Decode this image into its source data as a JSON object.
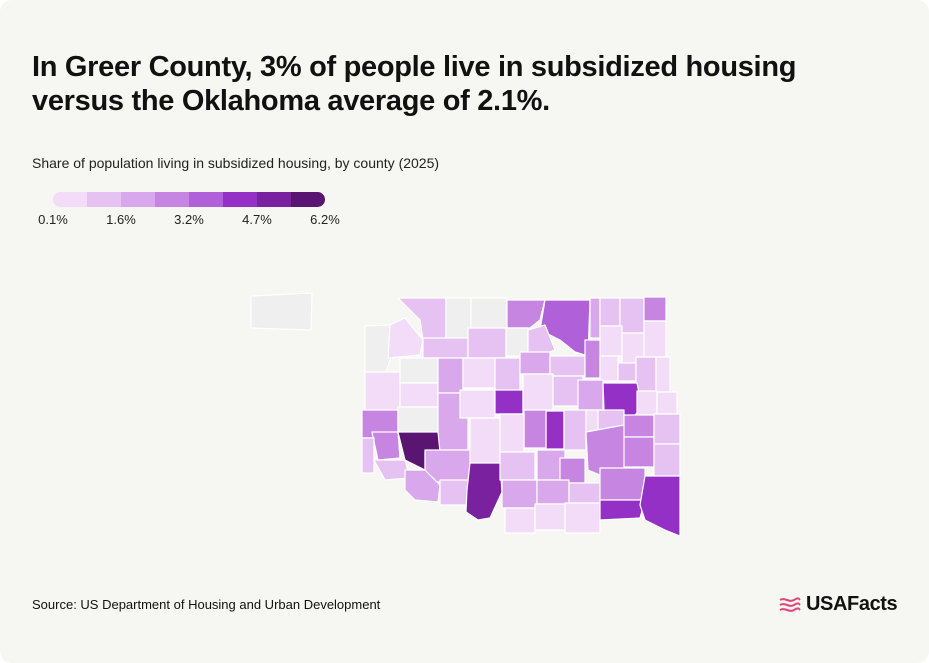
{
  "title": "In Greer County, 3% of people live in subsidized housing versus the Oklahoma average of 2.1%.",
  "subtitle": "Share of population living in subsidized housing, by county (2025)",
  "legend": {
    "colors": [
      "#f2dcf7",
      "#e6c2f2",
      "#d9a8ec",
      "#c785e2",
      "#b060d8",
      "#9530c7",
      "#7a219f",
      "#5a1472"
    ],
    "tick_labels": [
      "0.1%",
      "1.6%",
      "3.2%",
      "4.7%",
      "6.2%"
    ]
  },
  "source": "Source: US Department of Housing and Urban Development",
  "brand": {
    "name": "USAFacts",
    "accent": "#e0457b"
  },
  "map_colors": {
    "no_data": "#efeff0",
    "border": "#ffffff"
  }
}
